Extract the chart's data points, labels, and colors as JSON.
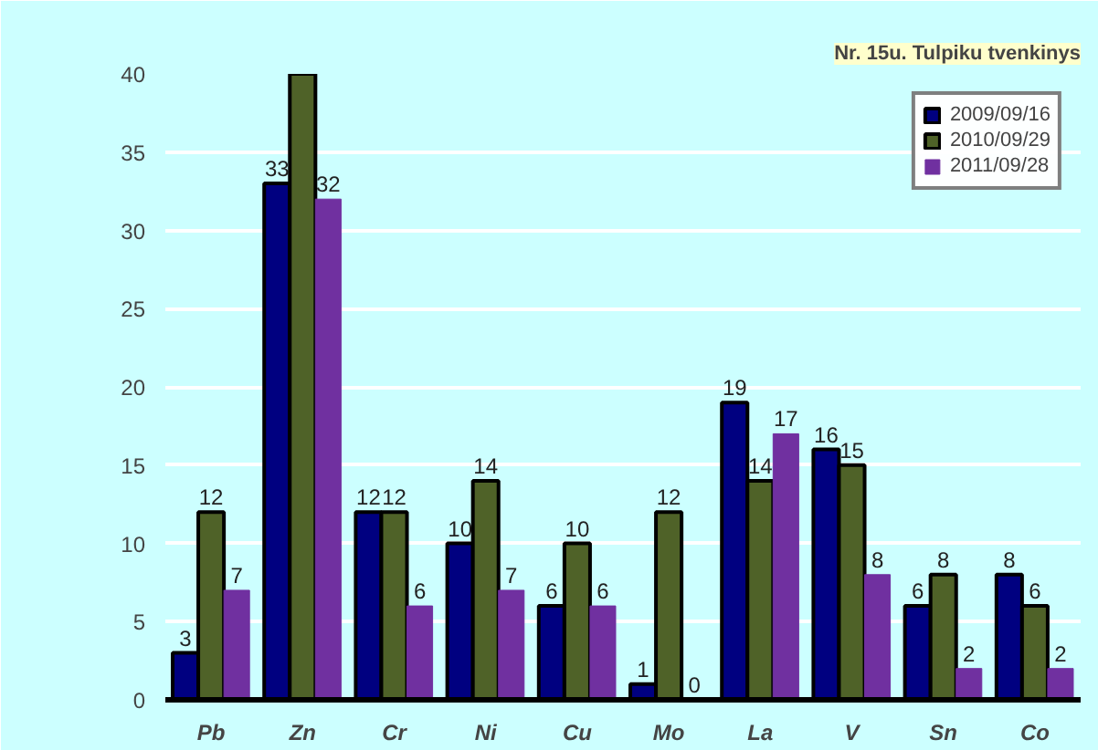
{
  "chart_data": {
    "type": "bar",
    "title": "Nr. 15u. Tulpiku tvenkinys",
    "categories": [
      "Pb",
      "Zn",
      "Cr",
      "Ni",
      "Cu",
      "Mo",
      "La",
      "V",
      "Sn",
      "Co"
    ],
    "series": [
      {
        "name": "2009/09/16",
        "color": "#000080",
        "values": [
          3,
          33,
          12,
          10,
          6,
          1,
          19,
          16,
          6,
          8
        ],
        "value_labels": [
          "3",
          "33",
          "12",
          "10",
          "6",
          "1",
          "19",
          "16",
          "6",
          "8"
        ]
      },
      {
        "name": "2010/09/29",
        "color": "#4f6228",
        "values": [
          12,
          40,
          12,
          14,
          10,
          12,
          14,
          15,
          8,
          6
        ],
        "value_labels": [
          "12",
          null,
          "12",
          "14",
          "10",
          "12",
          "14",
          "15",
          "8",
          "6"
        ]
      },
      {
        "name": "2011/09/28",
        "color": "#7030a0",
        "values": [
          7,
          32,
          6,
          7,
          6,
          0,
          17,
          8,
          2,
          2
        ],
        "value_labels": [
          "7",
          "32",
          "6",
          "7",
          "6",
          "0",
          "17",
          "8",
          "2",
          "2"
        ]
      }
    ],
    "ylim": [
      0,
      40
    ],
    "yticks": [
      0,
      5,
      10,
      15,
      20,
      25,
      30,
      35,
      40
    ],
    "grid": "y",
    "legend": "top right"
  }
}
